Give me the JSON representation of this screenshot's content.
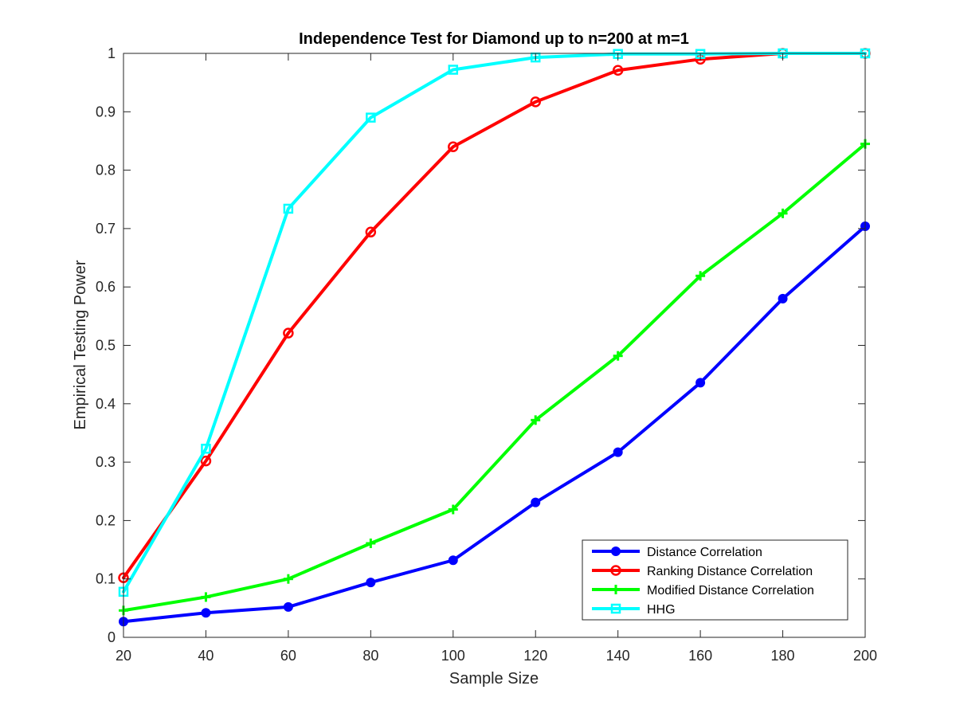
{
  "chart_data": {
    "type": "line",
    "title": "Independence Test for Diamond up to n=200 at m=1",
    "xlabel": "Sample Size",
    "ylabel": "Empirical Testing Power",
    "x": [
      20,
      40,
      60,
      80,
      100,
      120,
      140,
      160,
      180,
      200
    ],
    "xlim": [
      20,
      200
    ],
    "ylim": [
      0,
      1
    ],
    "xticks": [
      "20",
      "40",
      "60",
      "80",
      "100",
      "120",
      "140",
      "160",
      "180",
      "200"
    ],
    "yticks": [
      "0",
      "0.1",
      "0.2",
      "0.3",
      "0.4",
      "0.5",
      "0.6",
      "0.7",
      "0.8",
      "0.9",
      "1"
    ],
    "grid": false,
    "legend_position": "bottom-right",
    "series": [
      {
        "name": "Distance Correlation",
        "color": "#0000ff",
        "marker": "filled-circle",
        "values": [
          0.027,
          0.042,
          0.052,
          0.094,
          0.132,
          0.231,
          0.317,
          0.436,
          0.58,
          0.704
        ]
      },
      {
        "name": "Ranking Distance Correlation",
        "color": "#ff0000",
        "marker": "open-circle",
        "values": [
          0.102,
          0.302,
          0.521,
          0.694,
          0.84,
          0.917,
          0.971,
          0.99,
          1.0,
          1.0
        ]
      },
      {
        "name": "Modified Distance Correlation",
        "color": "#00ff00",
        "marker": "plus",
        "values": [
          0.046,
          0.069,
          0.1,
          0.161,
          0.219,
          0.372,
          0.482,
          0.619,
          0.726,
          0.845
        ]
      },
      {
        "name": "HHG",
        "color": "#00ffff",
        "marker": "square",
        "values": [
          0.078,
          0.323,
          0.734,
          0.89,
          0.972,
          0.993,
          0.999,
          0.999,
          1.0,
          1.0
        ]
      }
    ]
  }
}
